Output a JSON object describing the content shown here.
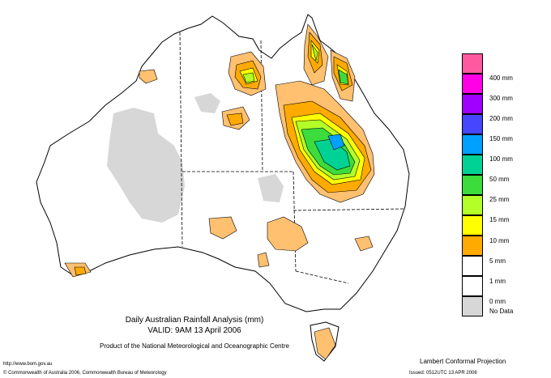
{
  "map": {
    "title": "Daily Australian Rainfall Analysis (mm)",
    "valid": "VALID: 9AM 13 April 2006",
    "product": "Product of the National Meteorological and Oceanographic Centre",
    "website": "http://www.bom.gov.au",
    "copyright": "© Commonwealth of Australia 2006, Commonwealth Bureau of Meteorology",
    "projection": "Lambert Conformal Projection",
    "issued": "Issued: 0512UTC 13 APR 2006"
  },
  "legend": {
    "items": [
      {
        "label": "400 mm",
        "color": "#ff5aa0"
      },
      {
        "label": "300 mm",
        "color": "#ff00e6"
      },
      {
        "label": "200 mm",
        "color": "#a000ff"
      },
      {
        "label": "150 mm",
        "color": "#4646ff"
      },
      {
        "label": "100 mm",
        "color": "#00a0ff"
      },
      {
        "label": "50 mm",
        "color": "#00d296"
      },
      {
        "label": "25 mm",
        "color": "#3cdc3c"
      },
      {
        "label": "15 mm",
        "color": "#b4ff28"
      },
      {
        "label": "10 mm",
        "color": "#ffff00"
      },
      {
        "label": "5 mm",
        "color": "#ffaa00"
      },
      {
        "label": "1 mm",
        "color": "#ffffff"
      },
      {
        "label": "0 mm",
        "color": "#ffffff"
      }
    ],
    "nodata": {
      "label": "No Data",
      "color": "#d7d7d7"
    }
  }
}
